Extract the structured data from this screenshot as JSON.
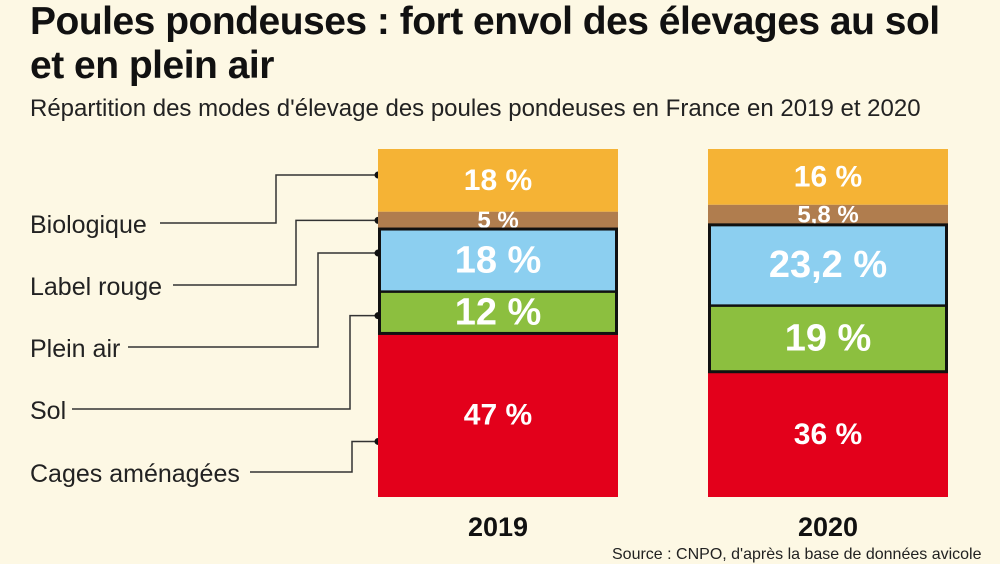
{
  "chart_data": {
    "type": "bar",
    "stacked": true,
    "title": "Poules pondeuses : fort envol des élevages au sol et en plein air",
    "subtitle": "Répartition des modes d'élevage des poules pondeuses en France en 2019 et 2020",
    "source": "Source : CNPO, d'après la base de données avicole",
    "categories": [
      "2019",
      "2020"
    ],
    "series": [
      {
        "name": "Cages aménagées",
        "color": "#e3001b",
        "values": [
          47,
          36
        ],
        "labels": [
          "47 %",
          "36 %"
        ]
      },
      {
        "name": "Sol",
        "color": "#8cbf3f",
        "values": [
          12,
          19
        ],
        "labels": [
          "12 %",
          "19 %"
        ]
      },
      {
        "name": "Plein air",
        "color": "#8ccff0",
        "values": [
          18,
          23.2
        ],
        "labels": [
          "18 %",
          "23,2 %"
        ]
      },
      {
        "name": "Label rouge",
        "color": "#b07d4e",
        "values": [
          5,
          5.8
        ],
        "labels": [
          "5 %",
          "5,8 %"
        ]
      },
      {
        "name": "Biologique",
        "color": "#f5b335",
        "values": [
          18,
          16
        ],
        "labels": [
          "18 %",
          "16 %"
        ]
      }
    ],
    "legend_placement": "left",
    "grid": false
  }
}
